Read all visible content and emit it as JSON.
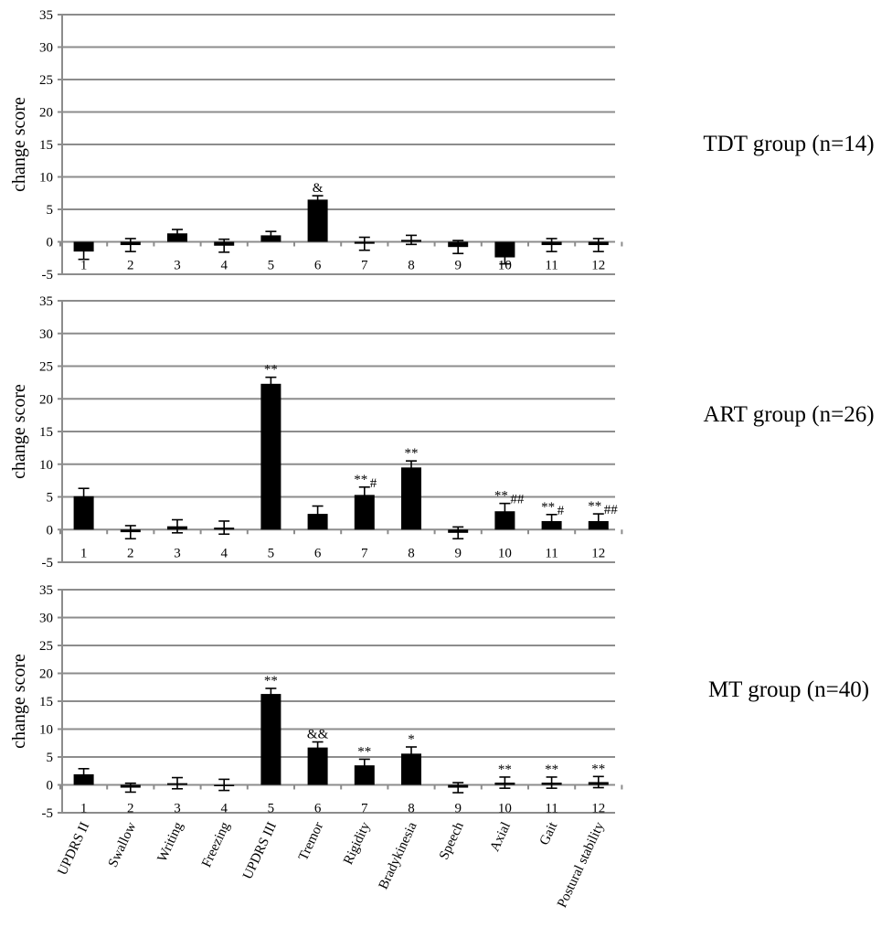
{
  "chart_data": {
    "type": "bar",
    "yticks": [
      35,
      30,
      25,
      20,
      15,
      10,
      5,
      0,
      -5
    ],
    "ylim": [
      -5,
      35
    ],
    "ylabel": "change score",
    "grid": true,
    "categories": [
      "UPDRS II",
      "Swallow",
      "Writing",
      "Freezing",
      "UPDRS III",
      "Tremor",
      "Rigidity",
      "Bradykinesia",
      "Speech",
      "Axial",
      "Gait",
      "Postural stability"
    ],
    "bar_numbers": [
      "1",
      "2",
      "3",
      "4",
      "5",
      "6",
      "7",
      "8",
      "9",
      "10",
      "11",
      "12"
    ],
    "panels": [
      {
        "title": "TDT group (n=14)",
        "values": [
          -1.5,
          -0.5,
          1.3,
          -0.6,
          1.0,
          6.5,
          -0.3,
          0.3,
          -0.8,
          -2.4,
          -0.5,
          -0.5
        ],
        "errors": [
          1.2,
          1.0,
          0.6,
          1.0,
          0.6,
          0.6,
          1.0,
          0.7,
          1.0,
          1.0,
          1.0,
          1.0
        ],
        "significance": [
          {
            "bar": 6,
            "text": "&",
            "suffix": ""
          }
        ]
      },
      {
        "title": "ART group (n=26)",
        "values": [
          5.1,
          -0.4,
          0.5,
          0.3,
          22.3,
          2.4,
          5.3,
          9.5,
          -0.5,
          2.8,
          1.3,
          1.3
        ],
        "errors": [
          1.2,
          1.0,
          1.0,
          1.0,
          1.0,
          1.2,
          1.2,
          1.0,
          0.9,
          1.2,
          1.0,
          1.1
        ],
        "significance": [
          {
            "bar": 5,
            "text": "**",
            "suffix": ""
          },
          {
            "bar": 7,
            "text": "**",
            "suffix": "#"
          },
          {
            "bar": 8,
            "text": "**",
            "suffix": ""
          },
          {
            "bar": 10,
            "text": "**",
            "suffix": "##"
          },
          {
            "bar": 11,
            "text": "**",
            "suffix": "#"
          },
          {
            "bar": 12,
            "text": "**",
            "suffix": "##"
          }
        ]
      },
      {
        "title": "MT group (n=40)",
        "values": [
          1.9,
          -0.5,
          0.3,
          0.0,
          16.3,
          6.7,
          3.5,
          5.6,
          -0.5,
          0.4,
          0.4,
          0.5
        ],
        "errors": [
          1.0,
          0.8,
          1.0,
          1.0,
          1.0,
          1.0,
          1.1,
          1.2,
          0.9,
          1.0,
          1.0,
          1.0
        ],
        "significance": [
          {
            "bar": 5,
            "text": "**",
            "suffix": ""
          },
          {
            "bar": 6,
            "text": "&&",
            "suffix": ""
          },
          {
            "bar": 7,
            "text": "**",
            "suffix": ""
          },
          {
            "bar": 8,
            "text": "*",
            "suffix": ""
          },
          {
            "bar": 10,
            "text": "**",
            "suffix": ""
          },
          {
            "bar": 11,
            "text": "**",
            "suffix": ""
          },
          {
            "bar": 12,
            "text": "**",
            "suffix": ""
          }
        ]
      }
    ]
  }
}
